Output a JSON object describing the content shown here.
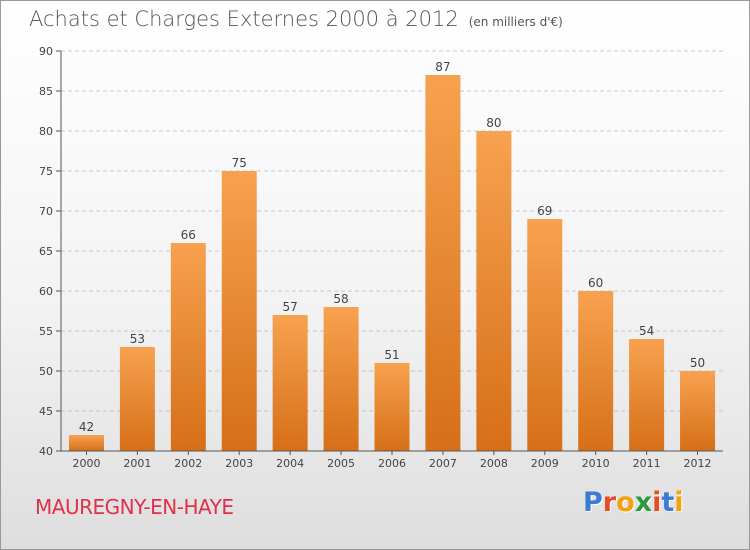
{
  "header": {
    "title": "Achats et Charges Externes 2000 à 2012",
    "subtitle": "(en milliers d'€)"
  },
  "footer": {
    "commune": "MAUREGNY-EN-HAYE",
    "logo_letters": [
      "P",
      "r",
      "o",
      "x",
      "i",
      "t",
      "i"
    ],
    "logo_colors": [
      "#3a7bd5",
      "#e84b2a",
      "#f2a20c",
      "#2a9a3c",
      "#e84b2a",
      "#3a7bd5",
      "#f2a20c"
    ]
  },
  "colors": {
    "bar_top": "#f7a24f",
    "bar_bottom": "#d66f18",
    "grid": "#bbbbbb",
    "axis": "#555555"
  },
  "chart_data": {
    "type": "bar",
    "categories": [
      "2000",
      "2001",
      "2002",
      "2003",
      "2004",
      "2005",
      "2006",
      "2007",
      "2008",
      "2009",
      "2010",
      "2011",
      "2012"
    ],
    "values": [
      42,
      53,
      66,
      75,
      57,
      58,
      51,
      87,
      80,
      69,
      60,
      54,
      50
    ],
    "title": "Achats et Charges Externes 2000 à 2012",
    "subtitle": "(en milliers d'€)",
    "ylim": [
      40,
      90
    ],
    "yticks": [
      40,
      45,
      50,
      55,
      60,
      65,
      70,
      75,
      80,
      85,
      90
    ],
    "grid": true,
    "legend": "none"
  }
}
